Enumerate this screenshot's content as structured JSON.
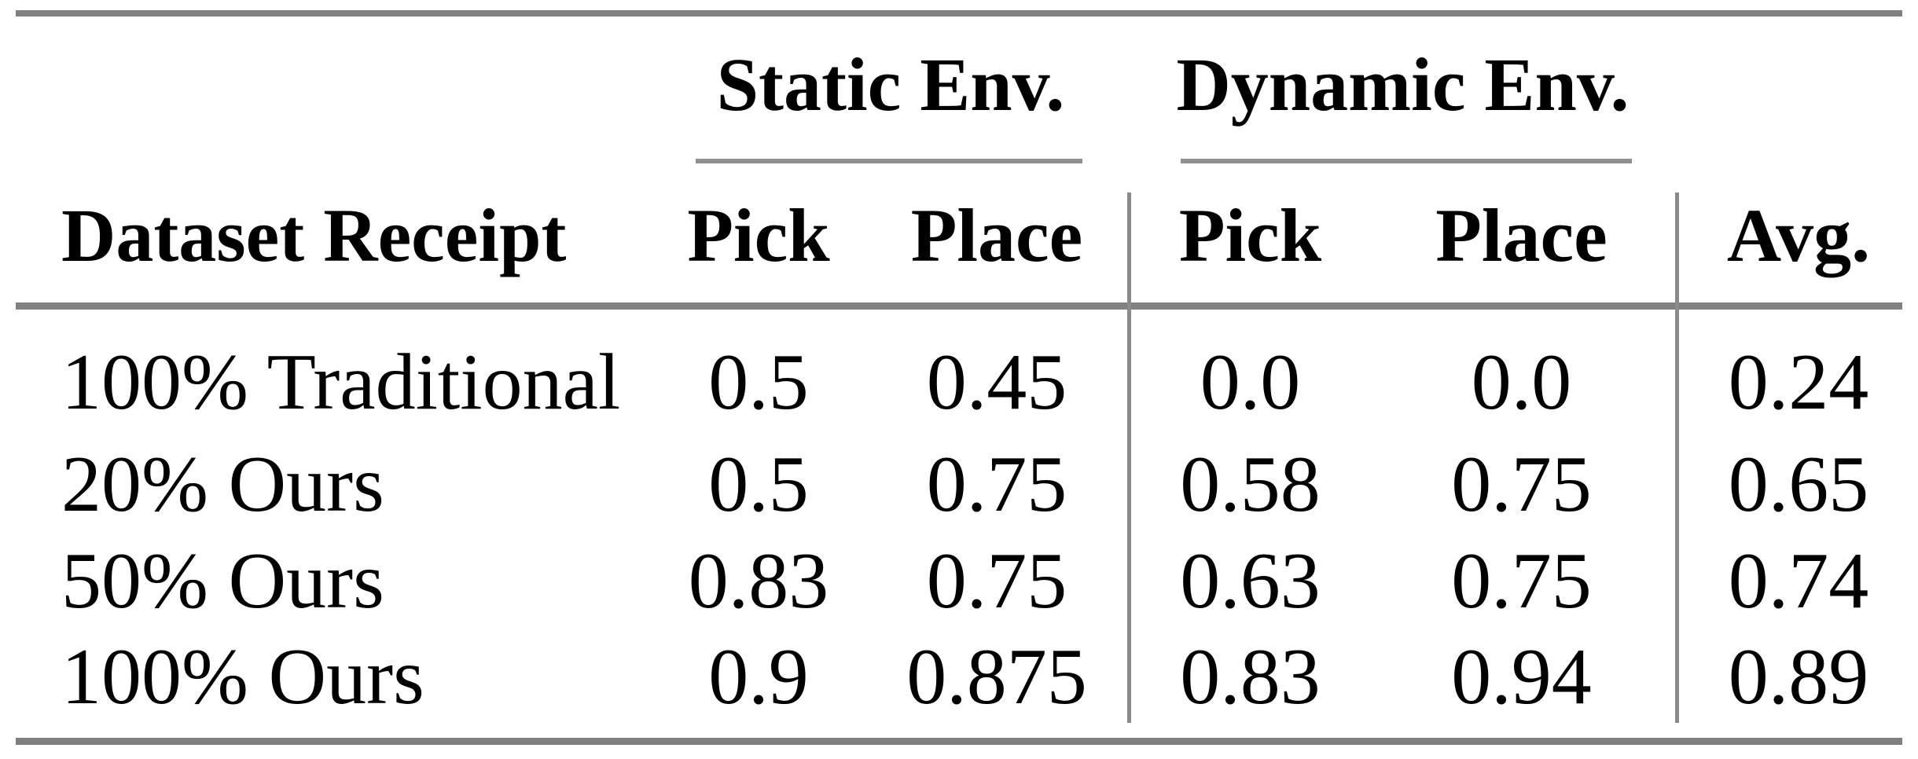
{
  "table": {
    "col_groups": {
      "static": "Static Env.",
      "dynamic": "Dynamic Env."
    },
    "headers": {
      "dataset": "Dataset Receipt",
      "static_pick": "Pick",
      "static_place": "Place",
      "dynamic_pick": "Pick",
      "dynamic_place": "Place",
      "avg": "Avg."
    },
    "rows": [
      {
        "dataset": "100% Traditional",
        "static_pick": "0.5",
        "static_place": "0.45",
        "dynamic_pick": "0.0",
        "dynamic_place": "0.0",
        "avg": "0.24"
      },
      {
        "dataset": "20% Ours",
        "static_pick": "0.5",
        "static_place": "0.75",
        "dynamic_pick": "0.58",
        "dynamic_place": "0.75",
        "avg": "0.65"
      },
      {
        "dataset": "50% Ours",
        "static_pick": "0.83",
        "static_place": "0.75",
        "dynamic_pick": "0.63",
        "dynamic_place": "0.75",
        "avg": "0.74"
      },
      {
        "dataset": "100% Ours",
        "static_pick": "0.9",
        "static_place": "0.875",
        "dynamic_pick": "0.83",
        "dynamic_place": "0.94",
        "avg": "0.89"
      }
    ]
  },
  "colors": {
    "background": "#ffffff",
    "text": "#000000",
    "horizontal_rule": "#808080",
    "cmidrule": "#909090",
    "vertical_separator": "#8a8a8a"
  },
  "chart_data": {
    "type": "table",
    "title": "",
    "column_groups": [
      {
        "label": "Static Env.",
        "columns": [
          "Pick",
          "Place"
        ]
      },
      {
        "label": "Dynamic Env.",
        "columns": [
          "Pick",
          "Place"
        ]
      }
    ],
    "columns": [
      "Dataset Receipt",
      "Static Env. Pick",
      "Static Env. Place",
      "Dynamic Env. Pick",
      "Dynamic Env. Place",
      "Avg."
    ],
    "rows": [
      [
        "100% Traditional",
        0.5,
        0.45,
        0.0,
        0.0,
        0.24
      ],
      [
        "20% Ours",
        0.5,
        0.75,
        0.58,
        0.75,
        0.65
      ],
      [
        "50% Ours",
        0.83,
        0.75,
        0.63,
        0.75,
        0.74
      ],
      [
        "100% Ours",
        0.9,
        0.875,
        0.83,
        0.94,
        0.89
      ]
    ]
  }
}
